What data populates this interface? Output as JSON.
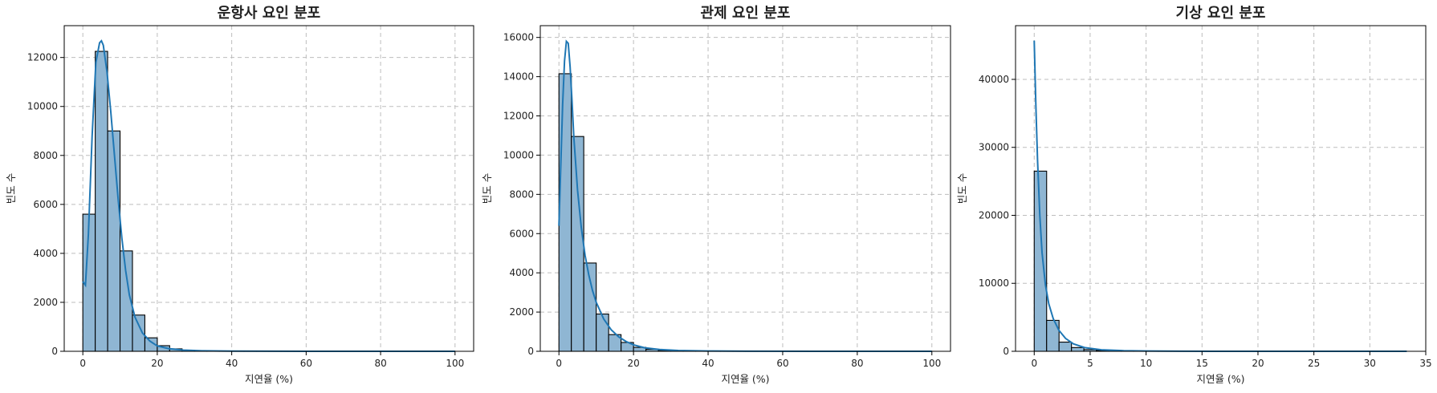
{
  "chart_data": [
    {
      "type": "bar",
      "title": "운항사 요인 분포",
      "xlabel": "지연율 (%)",
      "ylabel": "빈도 수",
      "xlim": [
        -5,
        105
      ],
      "ylim": [
        0,
        13300
      ],
      "xticks": [
        0,
        20,
        40,
        60,
        80,
        100
      ],
      "yticks": [
        0,
        2000,
        4000,
        6000,
        8000,
        10000,
        12000
      ],
      "grid": true,
      "bin_width": 3.33,
      "bins": [
        {
          "x0": 0.0,
          "count": 5600
        },
        {
          "x0": 3.33,
          "count": 12250
        },
        {
          "x0": 6.67,
          "count": 9000
        },
        {
          "x0": 10.0,
          "count": 4100
        },
        {
          "x0": 13.33,
          "count": 1480
        },
        {
          "x0": 16.67,
          "count": 550
        },
        {
          "x0": 20.0,
          "count": 230
        },
        {
          "x0": 23.33,
          "count": 100
        },
        {
          "x0": 26.67,
          "count": 45
        },
        {
          "x0": 30.0,
          "count": 25
        },
        {
          "x0": 33.33,
          "count": 15
        },
        {
          "x0": 36.67,
          "count": 10
        },
        {
          "x0": 40.0,
          "count": 6
        },
        {
          "x0": 43.33,
          "count": 4
        },
        {
          "x0": 46.67,
          "count": 3
        },
        {
          "x0": 50.0,
          "count": 2
        },
        {
          "x0": 53.33,
          "count": 2
        },
        {
          "x0": 56.67,
          "count": 1
        }
      ],
      "kde": {
        "x": [
          0,
          0.7,
          1.5,
          2.5,
          3.5,
          4.5,
          5,
          5.5,
          6.5,
          7.5,
          8.5,
          9.5,
          10.5,
          11.5,
          12.5,
          14,
          16,
          18,
          20,
          23,
          27,
          32,
          40,
          50,
          60,
          80,
          100
        ],
        "y": [
          2850,
          2700,
          4800,
          8800,
          11800,
          12600,
          12680,
          12500,
          11400,
          9800,
          8000,
          6200,
          4600,
          3300,
          2300,
          1400,
          750,
          420,
          220,
          110,
          50,
          20,
          8,
          4,
          2,
          1,
          0
        ]
      }
    },
    {
      "type": "bar",
      "title": "관제 요인 분포",
      "xlabel": "지연율 (%)",
      "ylabel": "빈도 수",
      "xlim": [
        -5,
        105
      ],
      "ylim": [
        0,
        16600
      ],
      "xticks": [
        0,
        20,
        40,
        60,
        80,
        100
      ],
      "yticks": [
        0,
        2000,
        4000,
        6000,
        8000,
        10000,
        12000,
        14000,
        16000
      ],
      "grid": true,
      "bin_width": 3.33,
      "bins": [
        {
          "x0": 0.0,
          "count": 14150
        },
        {
          "x0": 3.33,
          "count": 10950
        },
        {
          "x0": 6.67,
          "count": 4500
        },
        {
          "x0": 10.0,
          "count": 1900
        },
        {
          "x0": 13.33,
          "count": 850
        },
        {
          "x0": 16.67,
          "count": 450
        },
        {
          "x0": 20.0,
          "count": 200
        },
        {
          "x0": 23.33,
          "count": 100
        },
        {
          "x0": 26.67,
          "count": 50
        },
        {
          "x0": 30.0,
          "count": 30
        },
        {
          "x0": 33.33,
          "count": 20
        },
        {
          "x0": 36.67,
          "count": 12
        },
        {
          "x0": 40.0,
          "count": 8
        },
        {
          "x0": 43.33,
          "count": 5
        },
        {
          "x0": 46.67,
          "count": 3
        },
        {
          "x0": 50.0,
          "count": 2
        }
      ],
      "kde": {
        "x": [
          0,
          0.5,
          1,
          1.5,
          2,
          2.5,
          3,
          3.5,
          4,
          5,
          6,
          7,
          8,
          9,
          10,
          12,
          14,
          16,
          18,
          20,
          23,
          27,
          32,
          40,
          50,
          70,
          100
        ],
        "y": [
          6400,
          9500,
          12600,
          14800,
          15800,
          15700,
          14500,
          12800,
          10900,
          8200,
          6300,
          4900,
          3900,
          3100,
          2500,
          1650,
          1100,
          740,
          500,
          330,
          180,
          90,
          40,
          15,
          6,
          2,
          0
        ]
      }
    },
    {
      "type": "bar",
      "title": "기상 요인 분포",
      "xlabel": "지연율 (%)",
      "ylabel": "빈도 수",
      "xlim": [
        -1.67,
        35
      ],
      "ylim": [
        0,
        47900
      ],
      "xticks": [
        0,
        5,
        10,
        15,
        20,
        25,
        30,
        35
      ],
      "yticks": [
        0,
        10000,
        20000,
        30000,
        40000
      ],
      "grid": true,
      "bin_width": 1.11,
      "bins": [
        {
          "x0": 0.0,
          "count": 26500
        },
        {
          "x0": 1.11,
          "count": 4550
        },
        {
          "x0": 2.22,
          "count": 1350
        },
        {
          "x0": 3.33,
          "count": 550
        },
        {
          "x0": 4.44,
          "count": 250
        },
        {
          "x0": 5.56,
          "count": 130
        },
        {
          "x0": 6.67,
          "count": 70
        },
        {
          "x0": 7.78,
          "count": 40
        },
        {
          "x0": 8.89,
          "count": 25
        },
        {
          "x0": 10.0,
          "count": 15
        },
        {
          "x0": 11.11,
          "count": 10
        },
        {
          "x0": 12.22,
          "count": 6
        },
        {
          "x0": 13.33,
          "count": 4
        },
        {
          "x0": 14.44,
          "count": 3
        },
        {
          "x0": 15.56,
          "count": 2
        }
      ],
      "kde": {
        "x": [
          0,
          0.15,
          0.3,
          0.5,
          0.7,
          1,
          1.3,
          1.7,
          2.2,
          2.8,
          3.5,
          4.5,
          6,
          8,
          10,
          13,
          16,
          20,
          25,
          30,
          33.3
        ],
        "y": [
          45700,
          36000,
          28000,
          20000,
          14500,
          9800,
          7000,
          4800,
          3100,
          1900,
          1100,
          550,
          220,
          90,
          40,
          15,
          6,
          2,
          1,
          0,
          0
        ]
      }
    }
  ]
}
